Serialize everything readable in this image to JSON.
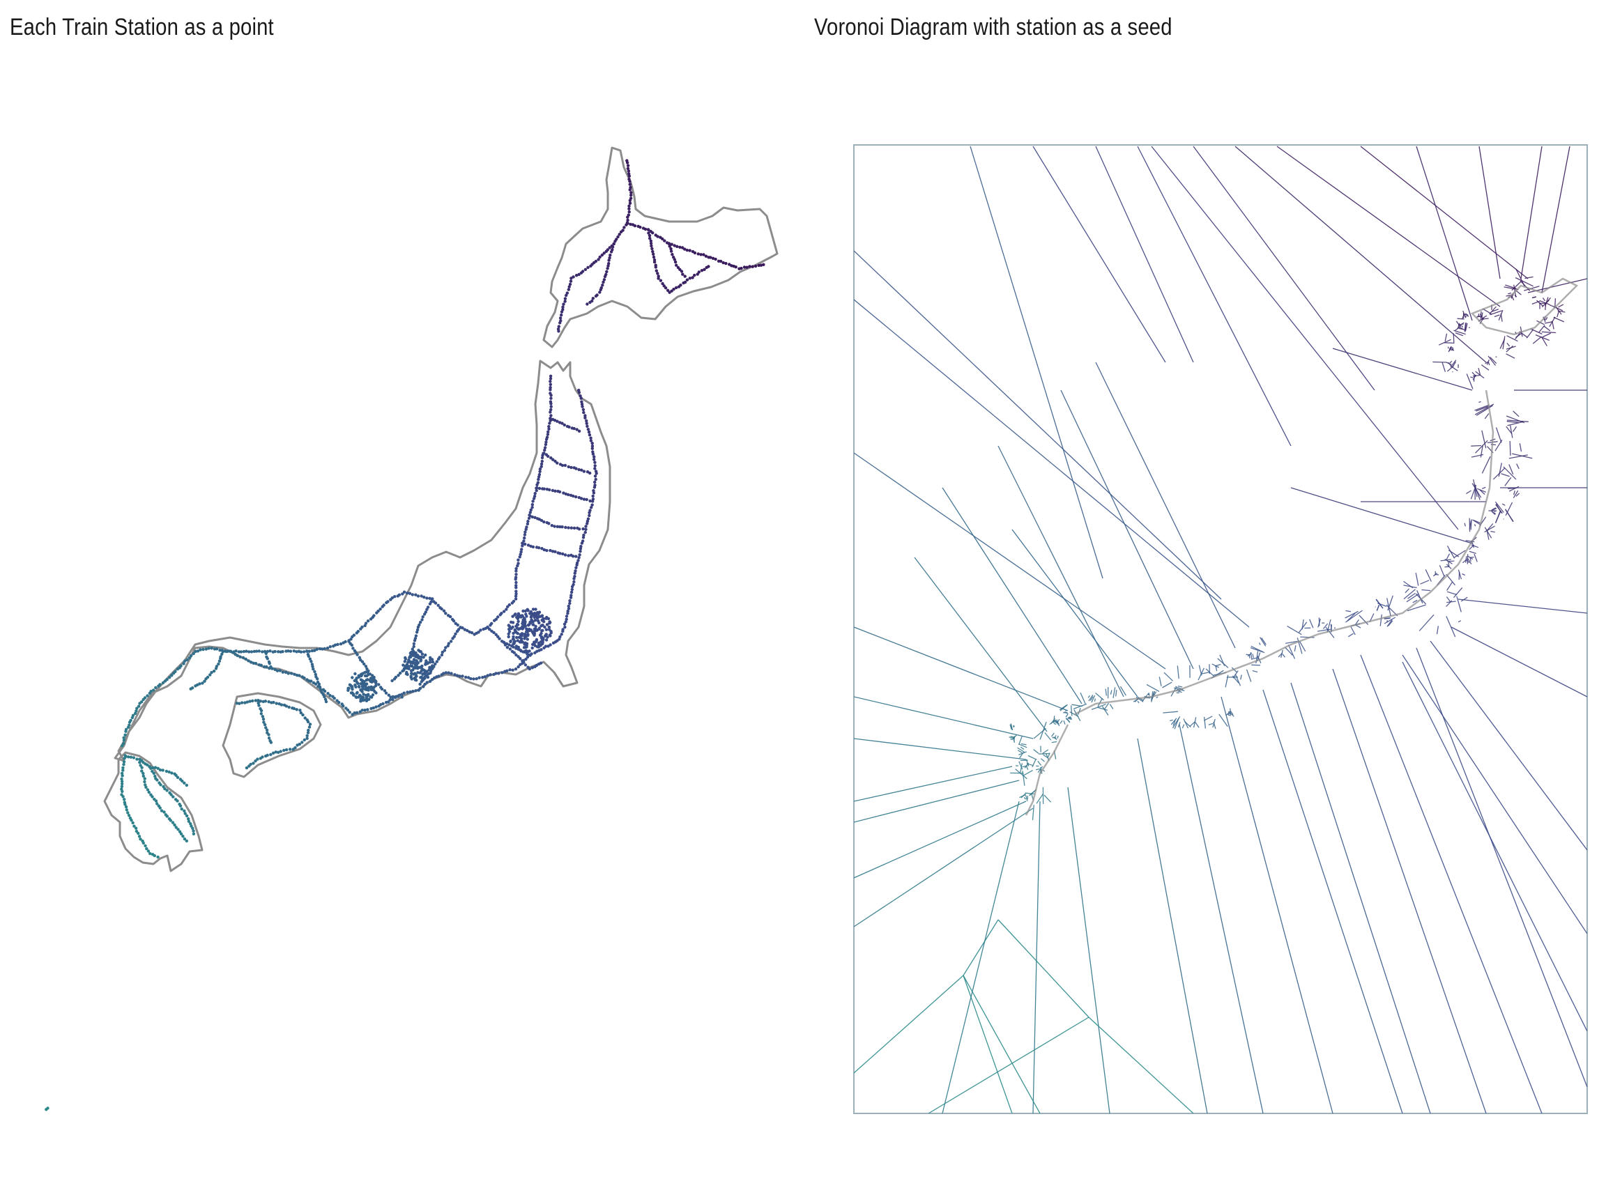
{
  "panels": {
    "left": {
      "title": "Each Train Station as a point"
    },
    "right": {
      "title": "Voronoi Diagram with station as a seed"
    }
  },
  "colors": {
    "coastline": "#8c8c8c",
    "frame": "#9bb0b8",
    "palette_north": "#3b0f52",
    "palette_central": "#3b4d8a",
    "palette_south": "#2a8a8a"
  },
  "icons": {
    "map": "japan-outline-map",
    "stations": "station-point-markers",
    "voronoi": "voronoi-cell-edges"
  }
}
